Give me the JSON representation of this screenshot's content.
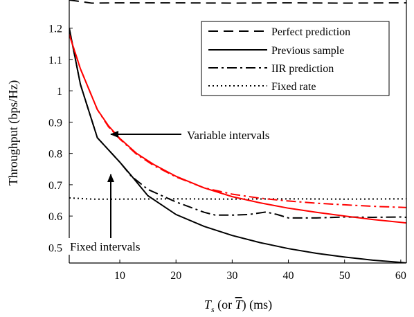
{
  "chart_data": {
    "type": "line",
    "xlabel": {
      "main": "T",
      "sub": "s",
      "mid": " (or ",
      "over": "T",
      "tail": ") (ms)"
    },
    "ylabel": "Throughput  (bps/Hz)",
    "xlim": [
      1,
      61
    ],
    "ylim": [
      0.45,
      1.29
    ],
    "x_ticks": [
      10,
      20,
      30,
      40,
      50,
      60
    ],
    "y_ticks": [
      0.5,
      0.6,
      0.7,
      0.8,
      0.9,
      1,
      1.1,
      1.2
    ],
    "x_tick_labels": [
      "10",
      "20",
      "30",
      "40",
      "50",
      "60"
    ],
    "y_tick_labels": [
      "0.5",
      "0.6",
      "0.7",
      "0.8",
      "0.9",
      "1",
      "1.1",
      "1.2"
    ],
    "grid": false,
    "legend_position": "top-right",
    "colors": {
      "fixed_intervals": "#000000",
      "variable_intervals": "#ff0000"
    },
    "legend": [
      {
        "label": "Perfect prediction",
        "style": "dashed"
      },
      {
        "label": "Previous sample",
        "style": "solid"
      },
      {
        "label": "IIR prediction",
        "style": "dashdot"
      },
      {
        "label": "Fixed rate",
        "style": "dotted"
      }
    ],
    "annotations": [
      {
        "text": "Variable intervals",
        "arrow_to": [
          8,
          0.865
        ]
      },
      {
        "text": "Fixed intervals",
        "arrow_to": [
          8,
          0.775
        ]
      }
    ],
    "series": [
      {
        "style": "dashed",
        "group": "fixed intervals",
        "x": [
          1,
          5,
          10,
          20,
          30,
          40,
          50,
          60,
          61
        ],
        "y": [
          1.29,
          1.28,
          1.281,
          1.281,
          1.28,
          1.281,
          1.28,
          1.281,
          1.281
        ]
      },
      {
        "style": "solid",
        "group": "fixed intervals",
        "x": [
          1,
          3,
          6,
          10,
          12,
          15,
          20,
          25,
          30,
          35,
          40,
          45,
          50,
          55,
          60,
          61
        ],
        "y": [
          1.2,
          1.02,
          0.85,
          0.772,
          0.73,
          0.665,
          0.605,
          0.567,
          0.538,
          0.515,
          0.496,
          0.481,
          0.469,
          0.459,
          0.452,
          0.45
        ]
      },
      {
        "style": "dashdot",
        "group": "fixed intervals",
        "x": [
          1,
          3,
          6,
          10,
          12,
          15,
          20,
          25,
          27,
          30,
          33,
          36,
          38,
          40,
          45,
          50,
          55,
          60,
          61
        ],
        "y": [
          1.2,
          1.02,
          0.85,
          0.772,
          0.728,
          0.685,
          0.645,
          0.612,
          0.603,
          0.603,
          0.605,
          0.613,
          0.605,
          0.594,
          0.594,
          0.597,
          0.596,
          0.597,
          0.596
        ]
      },
      {
        "style": "dotted",
        "group": "fixed intervals",
        "x": [
          1,
          5,
          10,
          20,
          30,
          40,
          50,
          61
        ],
        "y": [
          0.658,
          0.654,
          0.654,
          0.655,
          0.654,
          0.655,
          0.654,
          0.655
        ]
      },
      {
        "style": "solid",
        "group": "variable intervals",
        "x": [
          1,
          3,
          6,
          8,
          10,
          13,
          16,
          20,
          25,
          30,
          35,
          40,
          45,
          50,
          55,
          60,
          61
        ],
        "y": [
          1.18,
          1.07,
          0.94,
          0.888,
          0.848,
          0.8,
          0.765,
          0.727,
          0.69,
          0.662,
          0.642,
          0.625,
          0.612,
          0.6,
          0.589,
          0.58,
          0.578
        ]
      },
      {
        "style": "dashdot",
        "group": "variable intervals",
        "x": [
          1,
          3,
          6,
          8,
          10,
          13,
          16,
          20,
          25,
          30,
          35,
          40,
          45,
          50,
          55,
          60,
          61
        ],
        "y": [
          1.18,
          1.07,
          0.94,
          0.885,
          0.846,
          0.797,
          0.762,
          0.725,
          0.69,
          0.67,
          0.657,
          0.648,
          0.641,
          0.636,
          0.631,
          0.628,
          0.627
        ]
      }
    ]
  }
}
